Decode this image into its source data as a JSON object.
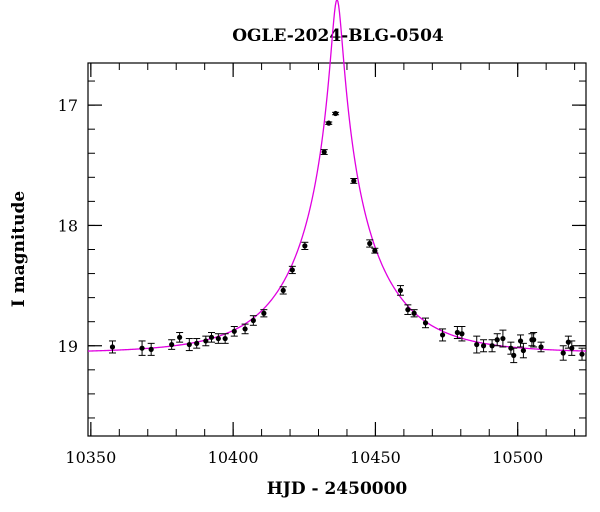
{
  "chart_data": {
    "type": "scatter",
    "title": "OGLE-2024-BLG-0504",
    "xlabel": "HJD - 2450000",
    "ylabel": "I magnitude",
    "xlim": [
      10349,
      10524
    ],
    "ylim": [
      19.75,
      16.65
    ],
    "y_inverted": true,
    "grid": false,
    "x_ticks": [
      10350,
      10400,
      10450,
      10500
    ],
    "y_ticks": [
      17,
      18,
      19
    ],
    "x_minor_step": 10,
    "y_minor_step": 0.2,
    "colors": {
      "model": "#e000e0",
      "points": "#000000",
      "axes": "#000000"
    },
    "series": [
      {
        "kind": "points",
        "x": [
          10357.6,
          10368.0,
          10371.2,
          10378.4,
          10381.2,
          10384.6,
          10387.2,
          10390.4,
          10392.4,
          10394.8,
          10397.2,
          10400.4,
          10404.2,
          10407.1,
          10410.8,
          10417.6,
          10420.8,
          10425.2,
          10432.0,
          10433.6,
          10436.0,
          10442.4,
          10448.0,
          10449.8,
          10458.8,
          10461.4,
          10463.6,
          10467.6,
          10473.6,
          10478.8,
          10480.4,
          10485.6,
          10488.0,
          10491.0,
          10492.8,
          10494.8,
          10497.6,
          10498.6,
          10501.0,
          10502.0,
          10505.0,
          10505.6,
          10508.2,
          10516.0,
          10517.8,
          10519.0,
          10522.6
        ],
        "y": [
          19.01,
          19.02,
          19.03,
          18.99,
          18.93,
          18.99,
          18.98,
          18.96,
          18.93,
          18.94,
          18.94,
          18.88,
          18.86,
          18.79,
          18.73,
          18.54,
          18.37,
          18.17,
          17.39,
          17.15,
          17.07,
          17.63,
          18.15,
          18.21,
          18.54,
          18.7,
          18.73,
          18.81,
          18.91,
          18.89,
          18.9,
          18.99,
          19.0,
          19.0,
          18.95,
          18.94,
          19.02,
          19.08,
          18.96,
          19.04,
          18.95,
          18.95,
          19.01,
          19.06,
          18.97,
          19.02,
          19.07
        ],
        "err": [
          0.05,
          0.06,
          0.05,
          0.04,
          0.04,
          0.05,
          0.04,
          0.04,
          0.04,
          0.04,
          0.04,
          0.04,
          0.04,
          0.04,
          0.03,
          0.03,
          0.03,
          0.03,
          0.02,
          0.01,
          0.01,
          0.02,
          0.03,
          0.02,
          0.04,
          0.04,
          0.03,
          0.04,
          0.05,
          0.05,
          0.06,
          0.07,
          0.05,
          0.05,
          0.05,
          0.07,
          0.05,
          0.06,
          0.05,
          0.06,
          0.05,
          0.06,
          0.04,
          0.06,
          0.05,
          0.06,
          0.05
        ]
      },
      {
        "kind": "model",
        "t0": 10436.5,
        "u0": 0.067,
        "tE": 28.0,
        "I_base": 19.06
      }
    ]
  }
}
